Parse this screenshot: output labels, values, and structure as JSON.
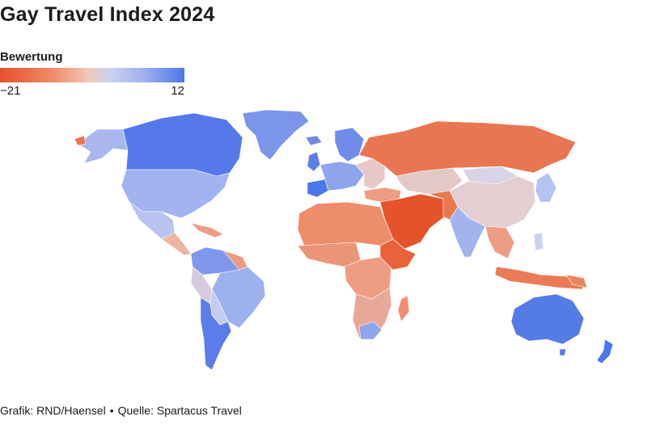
{
  "title": "Gay Travel Index 2024",
  "legend": {
    "title": "Bewertung",
    "min_label": "−21",
    "max_label": "12",
    "colors": [
      "#e8502a",
      "#ee8a68",
      "#f0c8bb",
      "#c9d2f2",
      "#9fb0ee",
      "#4d76ea"
    ]
  },
  "footer": {
    "credit": "Grafik: RND/Haensel",
    "separator": "•",
    "source": "Quelle: Spartacus Travel"
  }
}
